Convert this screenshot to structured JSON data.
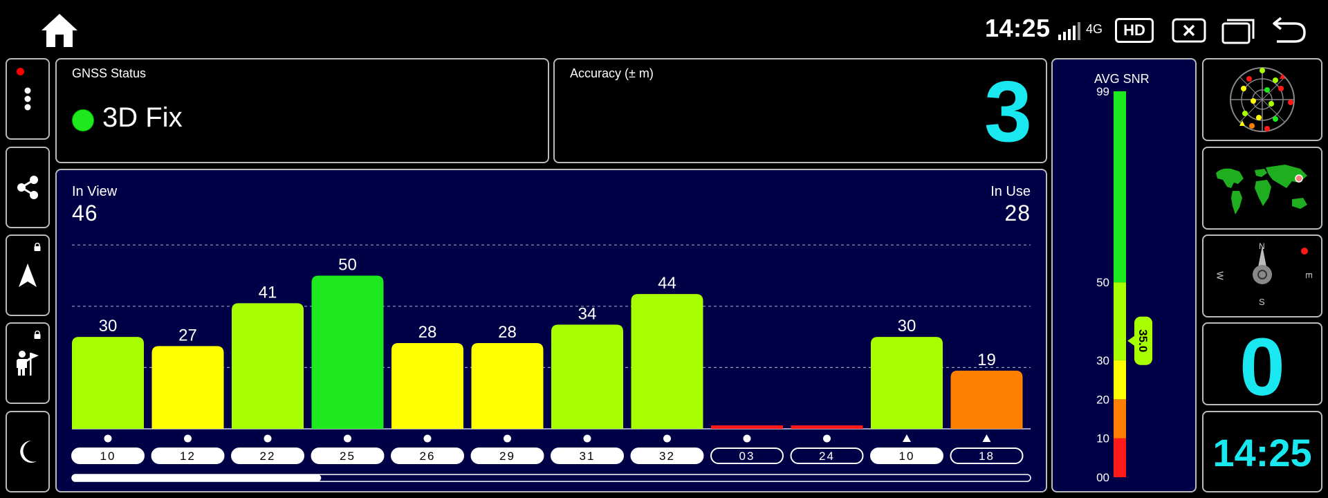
{
  "status_bar": {
    "time": "14:25",
    "network": "4G",
    "hd": "HD"
  },
  "gnss": {
    "title": "GNSS Status",
    "status": "3D Fix",
    "status_color": "#1ee81e"
  },
  "accuracy": {
    "title": "Accuracy (± m)",
    "value": "3"
  },
  "satellites": {
    "in_view_label": "In View",
    "in_view": "46",
    "in_use_label": "In Use",
    "in_use": "28",
    "scroll_position": 0.26
  },
  "chart_data": {
    "type": "bar",
    "categories": [
      "10",
      "12",
      "22",
      "25",
      "26",
      "29",
      "31",
      "32",
      "03",
      "24",
      "10",
      "18"
    ],
    "values": [
      30,
      27,
      41,
      50,
      28,
      28,
      34,
      44,
      0,
      0,
      30,
      19
    ],
    "value_labels": [
      "30",
      "27",
      "41",
      "50",
      "28",
      "28",
      "34",
      "44",
      "",
      "",
      "30",
      "19"
    ],
    "marker_shapes": [
      "circle",
      "circle",
      "circle",
      "circle",
      "circle",
      "circle",
      "circle",
      "circle",
      "circle",
      "circle",
      "triangle",
      "triangle"
    ],
    "in_use": [
      true,
      true,
      true,
      true,
      true,
      true,
      true,
      true,
      false,
      false,
      true,
      false
    ],
    "ylim": [
      0,
      60
    ],
    "gridlines": [
      20,
      40,
      60
    ],
    "colors": {
      "low": "#ff1a1a",
      "weak": "#ff8000",
      "fair": "#ffff00",
      "good": "#a8ff00",
      "strong": "#1ee81e"
    }
  },
  "snr": {
    "title": "AVG SNR",
    "value": 35.0,
    "value_label": "35.0",
    "scale_min": 0,
    "scale_max": 99,
    "ticks": [
      {
        "v": 99,
        "label": "99"
      },
      {
        "v": 50,
        "label": "50"
      },
      {
        "v": 30,
        "label": "30"
      },
      {
        "v": 20,
        "label": "20"
      },
      {
        "v": 10,
        "label": "10"
      },
      {
        "v": 0,
        "label": "00"
      }
    ],
    "bands": [
      {
        "from": 0,
        "to": 10,
        "color": "#ff1a1a"
      },
      {
        "from": 10,
        "to": 20,
        "color": "#ff8000"
      },
      {
        "from": 20,
        "to": 30,
        "color": "#ffff00"
      },
      {
        "from": 30,
        "to": 50,
        "color": "#a8ff00"
      },
      {
        "from": 50,
        "to": 99,
        "color": "#1ee81e"
      }
    ]
  },
  "compass": {
    "north": "N",
    "south": "S",
    "east": "E",
    "west": "W"
  },
  "speed": {
    "value": "0"
  },
  "clock": {
    "time": "14:25"
  }
}
